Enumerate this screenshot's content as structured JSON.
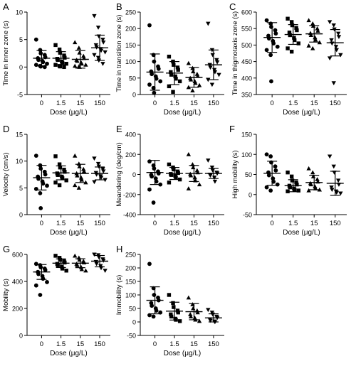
{
  "x_title": "Dose (μg/L)",
  "categories": [
    "0",
    "1.5",
    "15",
    "150"
  ],
  "marker_shapes": [
    "circle",
    "square",
    "triangle-up",
    "triangle-down"
  ],
  "colors": {
    "marks": "#000000",
    "axes": "#000000"
  },
  "chart_data": [
    {
      "type": "scatter",
      "panel_letter": "A",
      "ylabel": "Time in inner zone (s)",
      "ylim": [
        -5,
        10
      ],
      "yticks": [
        -5,
        0,
        5,
        10
      ],
      "xlabel": "Dose (μg/L)",
      "categories": [
        "0",
        "1.5",
        "15",
        "150"
      ],
      "series": [
        {
          "values": [
            5.0,
            3.1,
            2.5,
            2.2,
            1.8,
            1.6,
            1.3,
            1.1,
            0.9,
            0.6,
            0.4,
            0.2,
            0.1,
            0.0
          ],
          "mean": 1.6,
          "sd": 1.4
        },
        {
          "values": [
            4.0,
            3.2,
            2.6,
            2.1,
            1.7,
            1.5,
            1.3,
            1.0,
            0.8,
            0.6,
            0.4,
            0.2,
            0.1,
            0.0
          ],
          "mean": 1.6,
          "sd": 1.2
        },
        {
          "values": [
            4.5,
            3.5,
            2.6,
            2.0,
            1.6,
            1.3,
            1.1,
            0.8,
            0.6,
            0.4,
            0.2,
            0.1,
            0.0
          ],
          "mean": 1.4,
          "sd": 1.6
        },
        {
          "values": [
            9.3,
            7.2,
            5.6,
            5.0,
            4.5,
            4.0,
            3.6,
            3.3,
            3.0,
            2.7,
            2.2,
            1.7,
            1.2,
            0.6
          ],
          "mean": 3.5,
          "sd": 2.3
        }
      ]
    },
    {
      "type": "scatter",
      "panel_letter": "B",
      "ylabel": "Time in transition zone (s)",
      "ylim": [
        0,
        250
      ],
      "yticks": [
        0,
        50,
        100,
        150,
        200,
        250
      ],
      "xlabel": "Dose (μg/L)",
      "categories": [
        "0",
        "1.5",
        "15",
        "150"
      ],
      "series": [
        {
          "values": [
            210,
            120,
            100,
            85,
            78,
            70,
            62,
            55,
            48,
            40,
            30,
            20,
            5
          ],
          "mean": 68,
          "sd": 55
        },
        {
          "values": [
            115,
            100,
            90,
            82,
            75,
            68,
            60,
            55,
            48,
            40,
            25,
            8
          ],
          "mean": 65,
          "sd": 35
        },
        {
          "values": [
            95,
            80,
            70,
            62,
            56,
            50,
            45,
            40,
            35,
            28,
            22,
            12
          ],
          "mean": 52,
          "sd": 30
        },
        {
          "values": [
            215,
            135,
            120,
            105,
            98,
            90,
            82,
            75,
            68,
            60,
            45,
            30
          ],
          "mean": 90,
          "sd": 45
        }
      ]
    },
    {
      "type": "scatter",
      "panel_letter": "C",
      "ylabel": "Time in thigmotaxis zone (s)",
      "ylim": [
        350,
        600
      ],
      "yticks": [
        350,
        400,
        450,
        500,
        550,
        600
      ],
      "xlabel": "Dose (μg/L)",
      "categories": [
        "0",
        "1.5",
        "15",
        "150"
      ],
      "series": [
        {
          "values": [
            575,
            565,
            555,
            545,
            535,
            528,
            520,
            512,
            505,
            495,
            485,
            470,
            390
          ],
          "mean": 523,
          "sd": 45
        },
        {
          "values": [
            580,
            570,
            560,
            552,
            545,
            538,
            530,
            522,
            515,
            505,
            490,
            480
          ],
          "mean": 532,
          "sd": 30
        },
        {
          "values": [
            575,
            565,
            558,
            550,
            543,
            536,
            530,
            523,
            516,
            508,
            498,
            490
          ],
          "mean": 534,
          "sd": 25
        },
        {
          "values": [
            570,
            560,
            548,
            535,
            525,
            515,
            505,
            495,
            485,
            470,
            460,
            385
          ],
          "mean": 507,
          "sd": 40
        }
      ]
    },
    {
      "type": "scatter",
      "panel_letter": "D",
      "ylabel": "Velocity (cm/s)",
      "ylim": [
        0,
        15
      ],
      "yticks": [
        0,
        5,
        10,
        15
      ],
      "xlabel": "Dose (μg/L)",
      "categories": [
        "0",
        "1.5",
        "15",
        "150"
      ],
      "series": [
        {
          "values": [
            11.0,
            9.2,
            8.6,
            8.0,
            7.5,
            7.1,
            6.7,
            6.2,
            5.8,
            5.4,
            4.8,
            4.0,
            1.2
          ],
          "mean": 6.9,
          "sd": 2.3
        },
        {
          "values": [
            10.9,
            9.4,
            8.8,
            8.4,
            8.0,
            7.7,
            7.4,
            7.1,
            6.8,
            6.4,
            6.0,
            5.5
          ],
          "mean": 7.8,
          "sd": 1.3
        },
        {
          "values": [
            11.0,
            9.5,
            9.0,
            8.5,
            8.1,
            7.7,
            7.3,
            6.9,
            6.5,
            6.0,
            5.5,
            5.0
          ],
          "mean": 7.7,
          "sd": 1.7
        },
        {
          "values": [
            10.5,
            9.5,
            9.0,
            8.5,
            8.1,
            7.8,
            7.5,
            7.2,
            6.9,
            6.5,
            6.1
          ],
          "mean": 7.7,
          "sd": 1.2
        }
      ]
    },
    {
      "type": "scatter",
      "panel_letter": "E",
      "ylabel": "Meandering (deg/cm)",
      "ylim": [
        -400,
        400
      ],
      "yticks": [
        -400,
        -200,
        0,
        200,
        400
      ],
      "xlabel": "Dose (μg/L)",
      "categories": [
        "0",
        "1.5",
        "15",
        "150"
      ],
      "series": [
        {
          "values": [
            130,
            90,
            60,
            30,
            10,
            -5,
            -20,
            -40,
            -70,
            -100,
            -150,
            -280
          ],
          "mean": 20,
          "sd": 120
        },
        {
          "values": [
            100,
            70,
            50,
            30,
            15,
            5,
            -5,
            -15,
            -30,
            -50,
            -80
          ],
          "mean": 10,
          "sd": 60
        },
        {
          "values": [
            200,
            100,
            70,
            40,
            20,
            5,
            -10,
            -30,
            -60,
            -100,
            -140
          ],
          "mean": 10,
          "sd": 80
        },
        {
          "values": [
            140,
            70,
            40,
            20,
            10,
            0,
            -10,
            -30,
            -70
          ],
          "mean": 10,
          "sd": 50
        }
      ]
    },
    {
      "type": "scatter",
      "panel_letter": "F",
      "ylabel": "High mobility (s)",
      "ylim": [
        -50,
        150
      ],
      "yticks": [
        -50,
        0,
        50,
        100,
        150
      ],
      "xlabel": "Dose (μg/L)",
      "categories": [
        "0",
        "1.5",
        "15",
        "150"
      ],
      "series": [
        {
          "values": [
            100,
            95,
            80,
            70,
            60,
            55,
            48,
            40,
            32,
            25,
            18,
            10
          ],
          "mean": 53,
          "sd": 30
        },
        {
          "values": [
            55,
            45,
            35,
            30,
            25,
            22,
            18,
            15,
            12,
            10,
            8
          ],
          "mean": 22,
          "sd": 15
        },
        {
          "values": [
            65,
            55,
            45,
            38,
            32,
            28,
            25,
            20,
            15,
            12,
            10
          ],
          "mean": 30,
          "sd": 18
        },
        {
          "values": [
            95,
            70,
            55,
            35,
            25,
            18,
            12,
            8,
            5,
            3
          ],
          "mean": 28,
          "sd": 30
        }
      ]
    },
    {
      "type": "scatter",
      "panel_letter": "G",
      "ylabel": "Mobility (s)",
      "ylim": [
        0,
        600
      ],
      "yticks": [
        0,
        200,
        400,
        600
      ],
      "xlabel": "Dose (μg/L)",
      "categories": [
        "0",
        "1.5",
        "15",
        "150"
      ],
      "series": [
        {
          "values": [
            530,
            520,
            505,
            495,
            485,
            470,
            455,
            440,
            420,
            395,
            370,
            300
          ],
          "mean": 470,
          "sd": 55
        },
        {
          "values": [
            590,
            575,
            560,
            550,
            540,
            530,
            520,
            510,
            495,
            480
          ],
          "mean": 535,
          "sd": 32
        },
        {
          "values": [
            590,
            575,
            560,
            550,
            540,
            530,
            520,
            505,
            490,
            480
          ],
          "mean": 535,
          "sd": 33
        },
        {
          "values": [
            600,
            595,
            580,
            565,
            555,
            545,
            530,
            515,
            500,
            480
          ],
          "mean": 550,
          "sd": 42
        }
      ]
    },
    {
      "type": "scatter",
      "panel_letter": "H",
      "ylabel": "Immobility (s)",
      "ylim": [
        -50,
        250
      ],
      "yticks": [
        -50,
        0,
        50,
        100,
        150,
        200,
        250
      ],
      "xlabel": "Dose (μg/L)",
      "categories": [
        "0",
        "1.5",
        "15",
        "150"
      ],
      "series": [
        {
          "values": [
            215,
            125,
            100,
            90,
            80,
            70,
            60,
            50,
            42,
            35,
            25,
            20
          ],
          "mean": 80,
          "sd": 50
        },
        {
          "values": [
            100,
            70,
            55,
            42,
            35,
            28,
            20,
            12,
            8,
            3
          ],
          "mean": 40,
          "sd": 33
        },
        {
          "values": [
            90,
            65,
            50,
            42,
            35,
            28,
            20,
            15,
            8,
            3
          ],
          "mean": 38,
          "sd": 30
        },
        {
          "values": [
            45,
            35,
            28,
            20,
            15,
            10,
            5,
            2,
            0
          ],
          "mean": 15,
          "sd": 15
        }
      ]
    }
  ]
}
